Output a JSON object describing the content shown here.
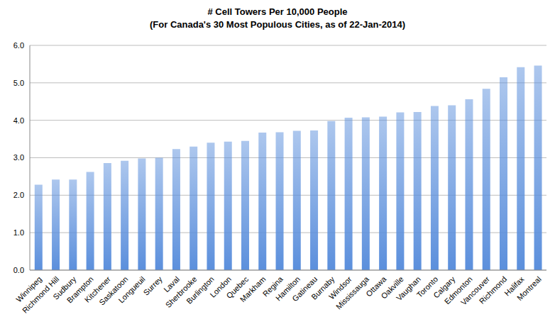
{
  "chart_data": {
    "type": "bar",
    "title": "# Cell Towers Per 10,000 People",
    "subtitle": "(For Canada's 30 Most Populous Cities, as of 22-Jan-2014)",
    "categories": [
      "Winnipeg",
      "Richmond Hill",
      "Sudbury",
      "Brampton",
      "Kitchener",
      "Saskatoon",
      "Longueuil",
      "Surrey",
      "Laval",
      "Sherbrooke",
      "Burlington",
      "London",
      "Quebec",
      "Markham",
      "Regina",
      "Hamilton",
      "Gatineau",
      "Burnaby",
      "Windsor",
      "Mississauga",
      "Ottawa",
      "Oakville",
      "Vaughan",
      "Toronto",
      "Calgary",
      "Edmonton",
      "Vancouver",
      "Richmond",
      "Halifax",
      "Montreal"
    ],
    "values": [
      2.28,
      2.42,
      2.42,
      2.62,
      2.86,
      2.92,
      2.98,
      3.0,
      3.23,
      3.3,
      3.4,
      3.43,
      3.45,
      3.67,
      3.68,
      3.72,
      3.73,
      3.98,
      4.07,
      4.08,
      4.1,
      4.21,
      4.22,
      4.38,
      4.4,
      4.56,
      4.84,
      5.15,
      5.42,
      5.46
    ],
    "color": "#5b8fdc",
    "ylim": [
      0,
      6
    ],
    "yticks": [
      {
        "value": 0,
        "label": "0.0"
      },
      {
        "value": 1,
        "label": "1.0"
      },
      {
        "value": 2,
        "label": "2.0"
      },
      {
        "value": 3,
        "label": "3.0"
      },
      {
        "value": 4,
        "label": "4.0"
      },
      {
        "value": 5,
        "label": "5.0"
      },
      {
        "value": 6,
        "label": "6.0"
      }
    ],
    "grid": true
  }
}
